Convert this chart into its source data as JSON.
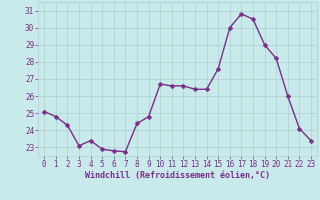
{
  "x": [
    0,
    1,
    2,
    3,
    4,
    5,
    6,
    7,
    8,
    9,
    10,
    11,
    12,
    13,
    14,
    15,
    16,
    17,
    18,
    19,
    20,
    21,
    22,
    23
  ],
  "y": [
    25.1,
    24.8,
    24.3,
    23.1,
    23.4,
    22.9,
    22.8,
    22.75,
    24.4,
    24.8,
    26.7,
    26.6,
    26.6,
    26.4,
    26.4,
    27.6,
    30.0,
    30.8,
    30.5,
    29.0,
    28.2,
    26.0,
    24.1,
    23.4
  ],
  "line_color": "#7b2d8b",
  "marker_color": "#7b2d8b",
  "bg_color": "#c8eaea",
  "grid_color": "#b0cece",
  "border_color": "#b0cece",
  "xlabel": "Windchill (Refroidissement éolien,°C)",
  "xlabel_color": "#7b2d8b",
  "tick_color": "#7b2d8b",
  "ylim": [
    22.5,
    31.5
  ],
  "yticks": [
    23,
    24,
    25,
    26,
    27,
    28,
    29,
    30,
    31
  ],
  "xlim": [
    -0.5,
    23.5
  ],
  "xticks": [
    0,
    1,
    2,
    3,
    4,
    5,
    6,
    7,
    8,
    9,
    10,
    11,
    12,
    13,
    14,
    15,
    16,
    17,
    18,
    19,
    20,
    21,
    22,
    23
  ],
  "marker_size": 2.5,
  "line_width": 1.0,
  "tick_fontsize": 5.5,
  "xlabel_fontsize": 6.0
}
